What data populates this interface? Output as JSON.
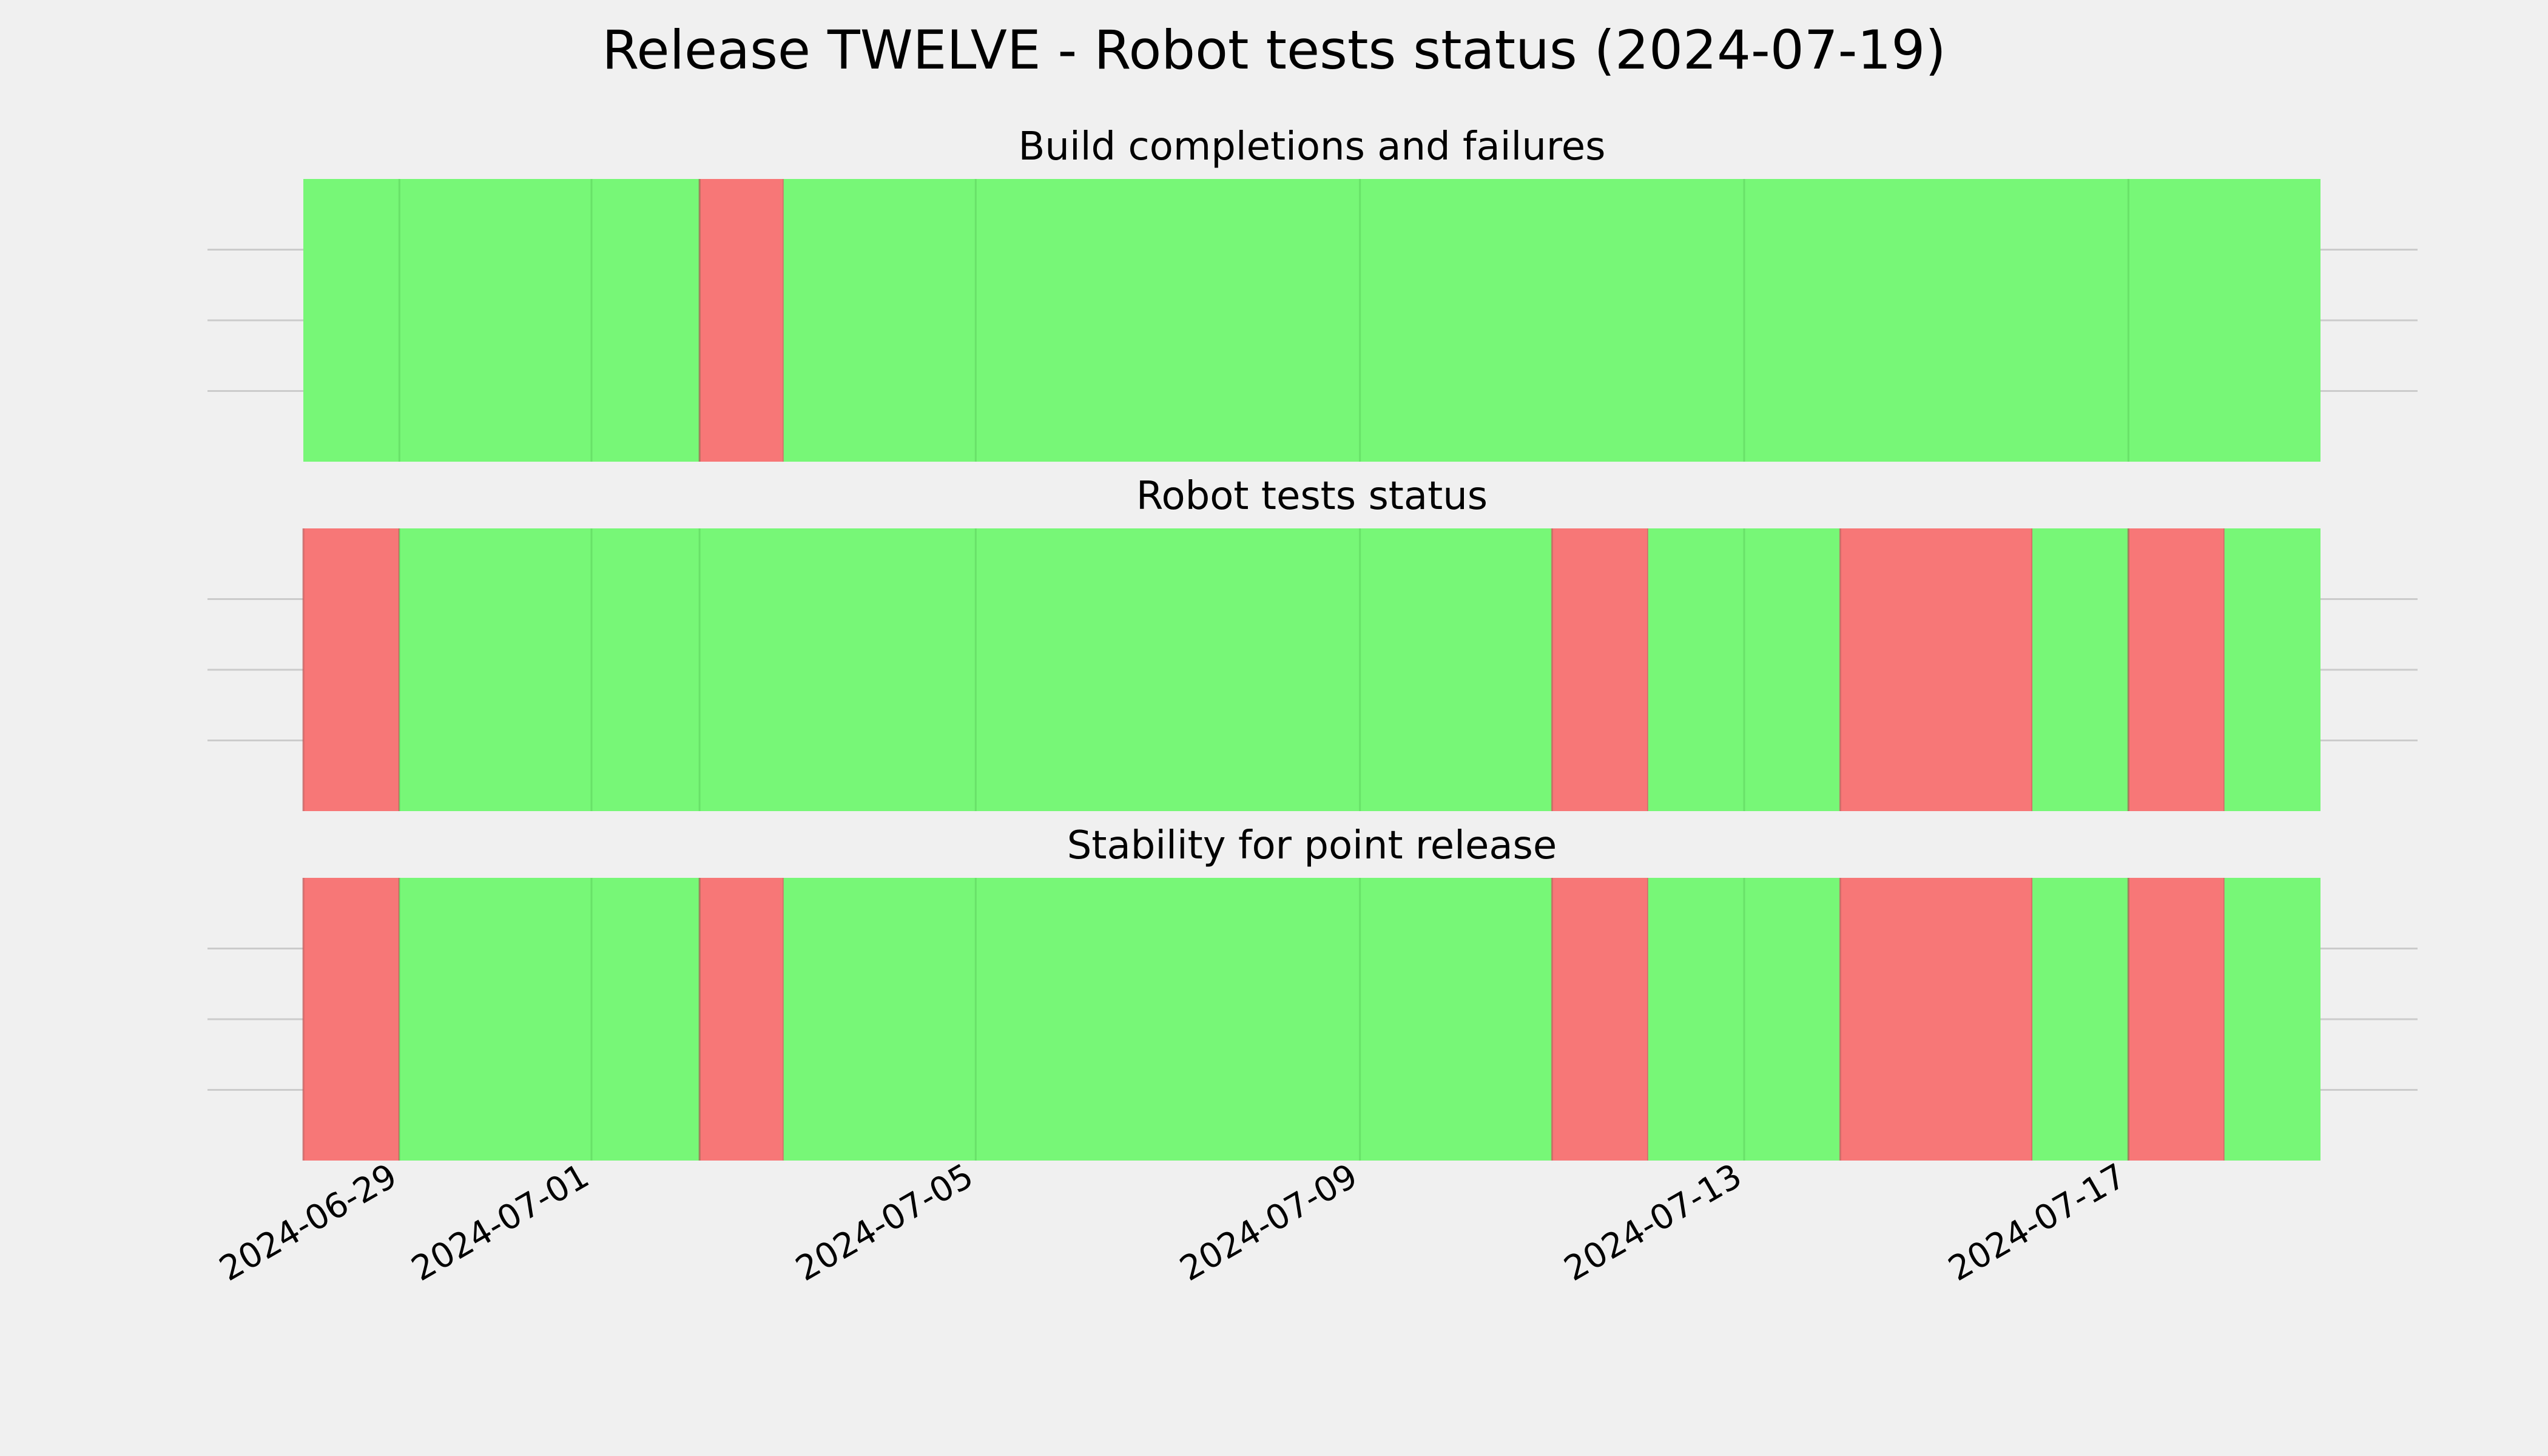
{
  "chart_data": {
    "type": "timeline",
    "title": "Release TWELVE - Robot tests status (2024-07-19)",
    "x_type": "date",
    "xlim": [
      "2024-06-28",
      "2024-07-19"
    ],
    "xticks": [
      "2024-06-29",
      "2024-07-01",
      "2024-07-05",
      "2024-07-09",
      "2024-07-13",
      "2024-07-17"
    ],
    "colors": {
      "pass": "#77f777",
      "fail": "#f77777",
      "background": "#f0f0f0"
    },
    "grid": true,
    "panels": [
      {
        "title": "Build completions and failures",
        "segments": [
          {
            "start": "2024-06-28",
            "end": "2024-07-02 03:00",
            "status": "pass"
          },
          {
            "start": "2024-07-02 03:00",
            "end": "2024-07-03",
            "status": "fail"
          },
          {
            "start": "2024-07-03",
            "end": "2024-07-19",
            "status": "pass"
          }
        ]
      },
      {
        "title": "Robot tests status",
        "segments": [
          {
            "start": "2024-06-28",
            "end": "2024-06-29",
            "status": "fail"
          },
          {
            "start": "2024-06-29",
            "end": "2024-07-11",
            "status": "pass"
          },
          {
            "start": "2024-07-11",
            "end": "2024-07-12",
            "status": "fail"
          },
          {
            "start": "2024-07-12",
            "end": "2024-07-14",
            "status": "pass"
          },
          {
            "start": "2024-07-14",
            "end": "2024-07-16",
            "status": "fail"
          },
          {
            "start": "2024-07-16",
            "end": "2024-07-17",
            "status": "pass"
          },
          {
            "start": "2024-07-17",
            "end": "2024-07-18",
            "status": "fail"
          },
          {
            "start": "2024-07-18",
            "end": "2024-07-19",
            "status": "pass"
          }
        ]
      },
      {
        "title": "Stability for point release",
        "segments": [
          {
            "start": "2024-06-28",
            "end": "2024-06-29",
            "status": "fail"
          },
          {
            "start": "2024-06-29",
            "end": "2024-07-02 03:00",
            "status": "pass"
          },
          {
            "start": "2024-07-02 03:00",
            "end": "2024-07-03",
            "status": "fail"
          },
          {
            "start": "2024-07-03",
            "end": "2024-07-11",
            "status": "pass"
          },
          {
            "start": "2024-07-11",
            "end": "2024-07-12",
            "status": "fail"
          },
          {
            "start": "2024-07-12",
            "end": "2024-07-14",
            "status": "pass"
          },
          {
            "start": "2024-07-14",
            "end": "2024-07-16",
            "status": "fail"
          },
          {
            "start": "2024-07-16",
            "end": "2024-07-17",
            "status": "pass"
          },
          {
            "start": "2024-07-17",
            "end": "2024-07-18",
            "status": "fail"
          },
          {
            "start": "2024-07-18",
            "end": "2024-07-19",
            "status": "pass"
          }
        ]
      }
    ]
  }
}
